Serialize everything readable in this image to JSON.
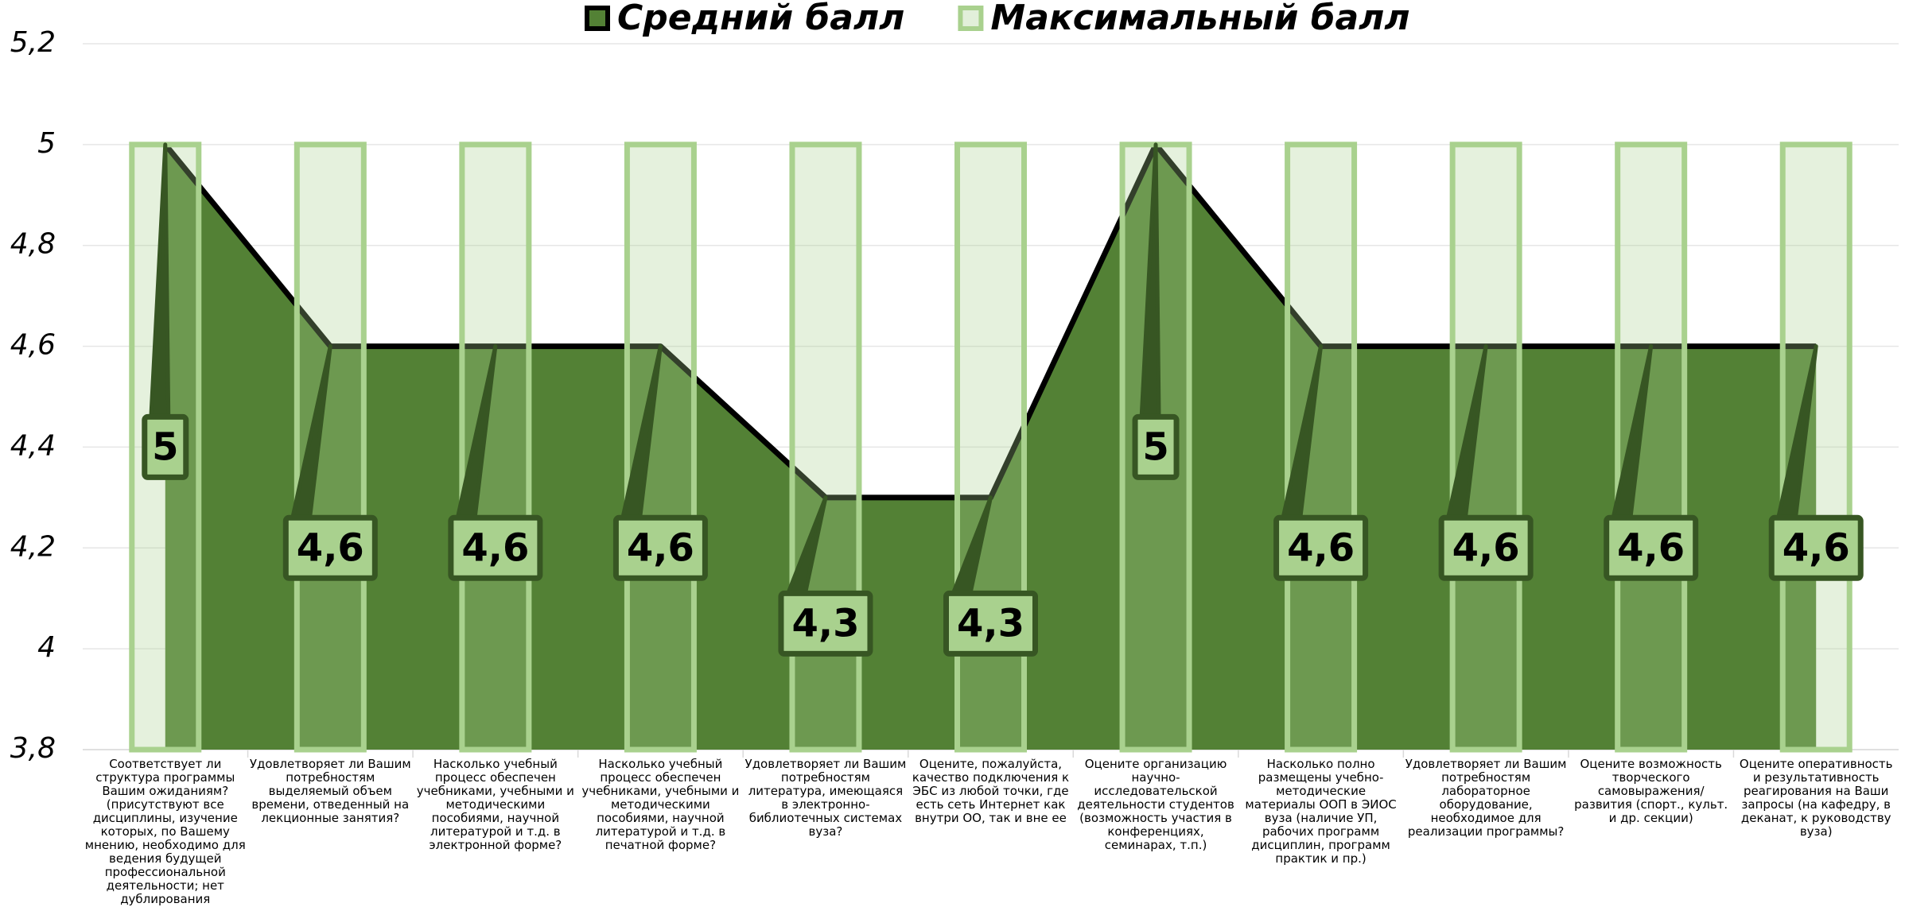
{
  "chart_data": {
    "type": "area_bar",
    "categories": [
      "Соответствует ли структура программы Вашим ожиданиям? (присутствуют все дисциплины, изучение которых, по Вашему мнению, необходимо для ведения будущей профессиональной деятельности; нет дублирования дисциплин; нет нарушения логики преподавания дисциплин и",
      "Удовлетворяет ли Вашим потребностям выделяемый объем времени, отведенный на лекционные занятия?",
      "Насколько учебный процесс обеспечен учебниками, учебными и методическими пособиями, научной литературой и т.д. в электронной форме?",
      "Насколько учебный процесс обеспечен учебниками, учебными и методическими пособиями, научной литературой и т.д. в печатной форме?",
      "Удовлетворяет ли Вашим потребностям литература, имеющаяся в электронно-библиотечных системах вуза?",
      "Оцените, пожалуйста, качество подключения к ЭБС из любой точки, где есть сеть Интернет как внутри ОО, так и вне ее",
      "Оцените организацию научно-исследовательской деятельности студентов (возможность участия в конференциях, семинарах, т.п.)",
      "Насколько полно размещены учебно-методические материалы ООП в ЭИОС вуза (наличие УП, рабочих программ дисциплин, программ практик и пр.)",
      "Удовлетворяет ли Вашим потребностям лабораторное оборудование, необходимое для реализации программы?",
      "Оцените возможность творческого самовыражения/развития (спорт., культ. и др. секции)",
      "Оцените оперативность и результативность реагирования на Ваши запросы (на кафедру, в деканат, к руководству вуза)"
    ],
    "series": [
      {
        "name": "Средний балл",
        "color": "#538135",
        "values": [
          5,
          4.6,
          4.6,
          4.6,
          4.3,
          4.3,
          5,
          4.6,
          4.6,
          4.6,
          4.6
        ],
        "value_labels": [
          "5",
          "4,6",
          "4,6",
          "4,6",
          "4,3",
          "4,3",
          "5",
          "4,6",
          "4,6",
          "4,6",
          "4,6"
        ]
      },
      {
        "name": "Максимальный балл",
        "color": "#a9d18e",
        "values": [
          5,
          5,
          5,
          5,
          5,
          5,
          5,
          5,
          5,
          5,
          5
        ]
      }
    ],
    "ylim": [
      3.8,
      5.2
    ],
    "yticks": [
      {
        "value": 3.8,
        "label": "3,8"
      },
      4,
      {
        "value": 4.2,
        "label": "4,2"
      },
      {
        "value": 4.4,
        "label": "4,4"
      },
      {
        "value": 4.6,
        "label": "4,6"
      },
      {
        "value": 4.8,
        "label": "4,8"
      },
      5,
      {
        "value": 5.2,
        "label": "5,2"
      }
    ],
    "grid": true,
    "legend": "top"
  }
}
